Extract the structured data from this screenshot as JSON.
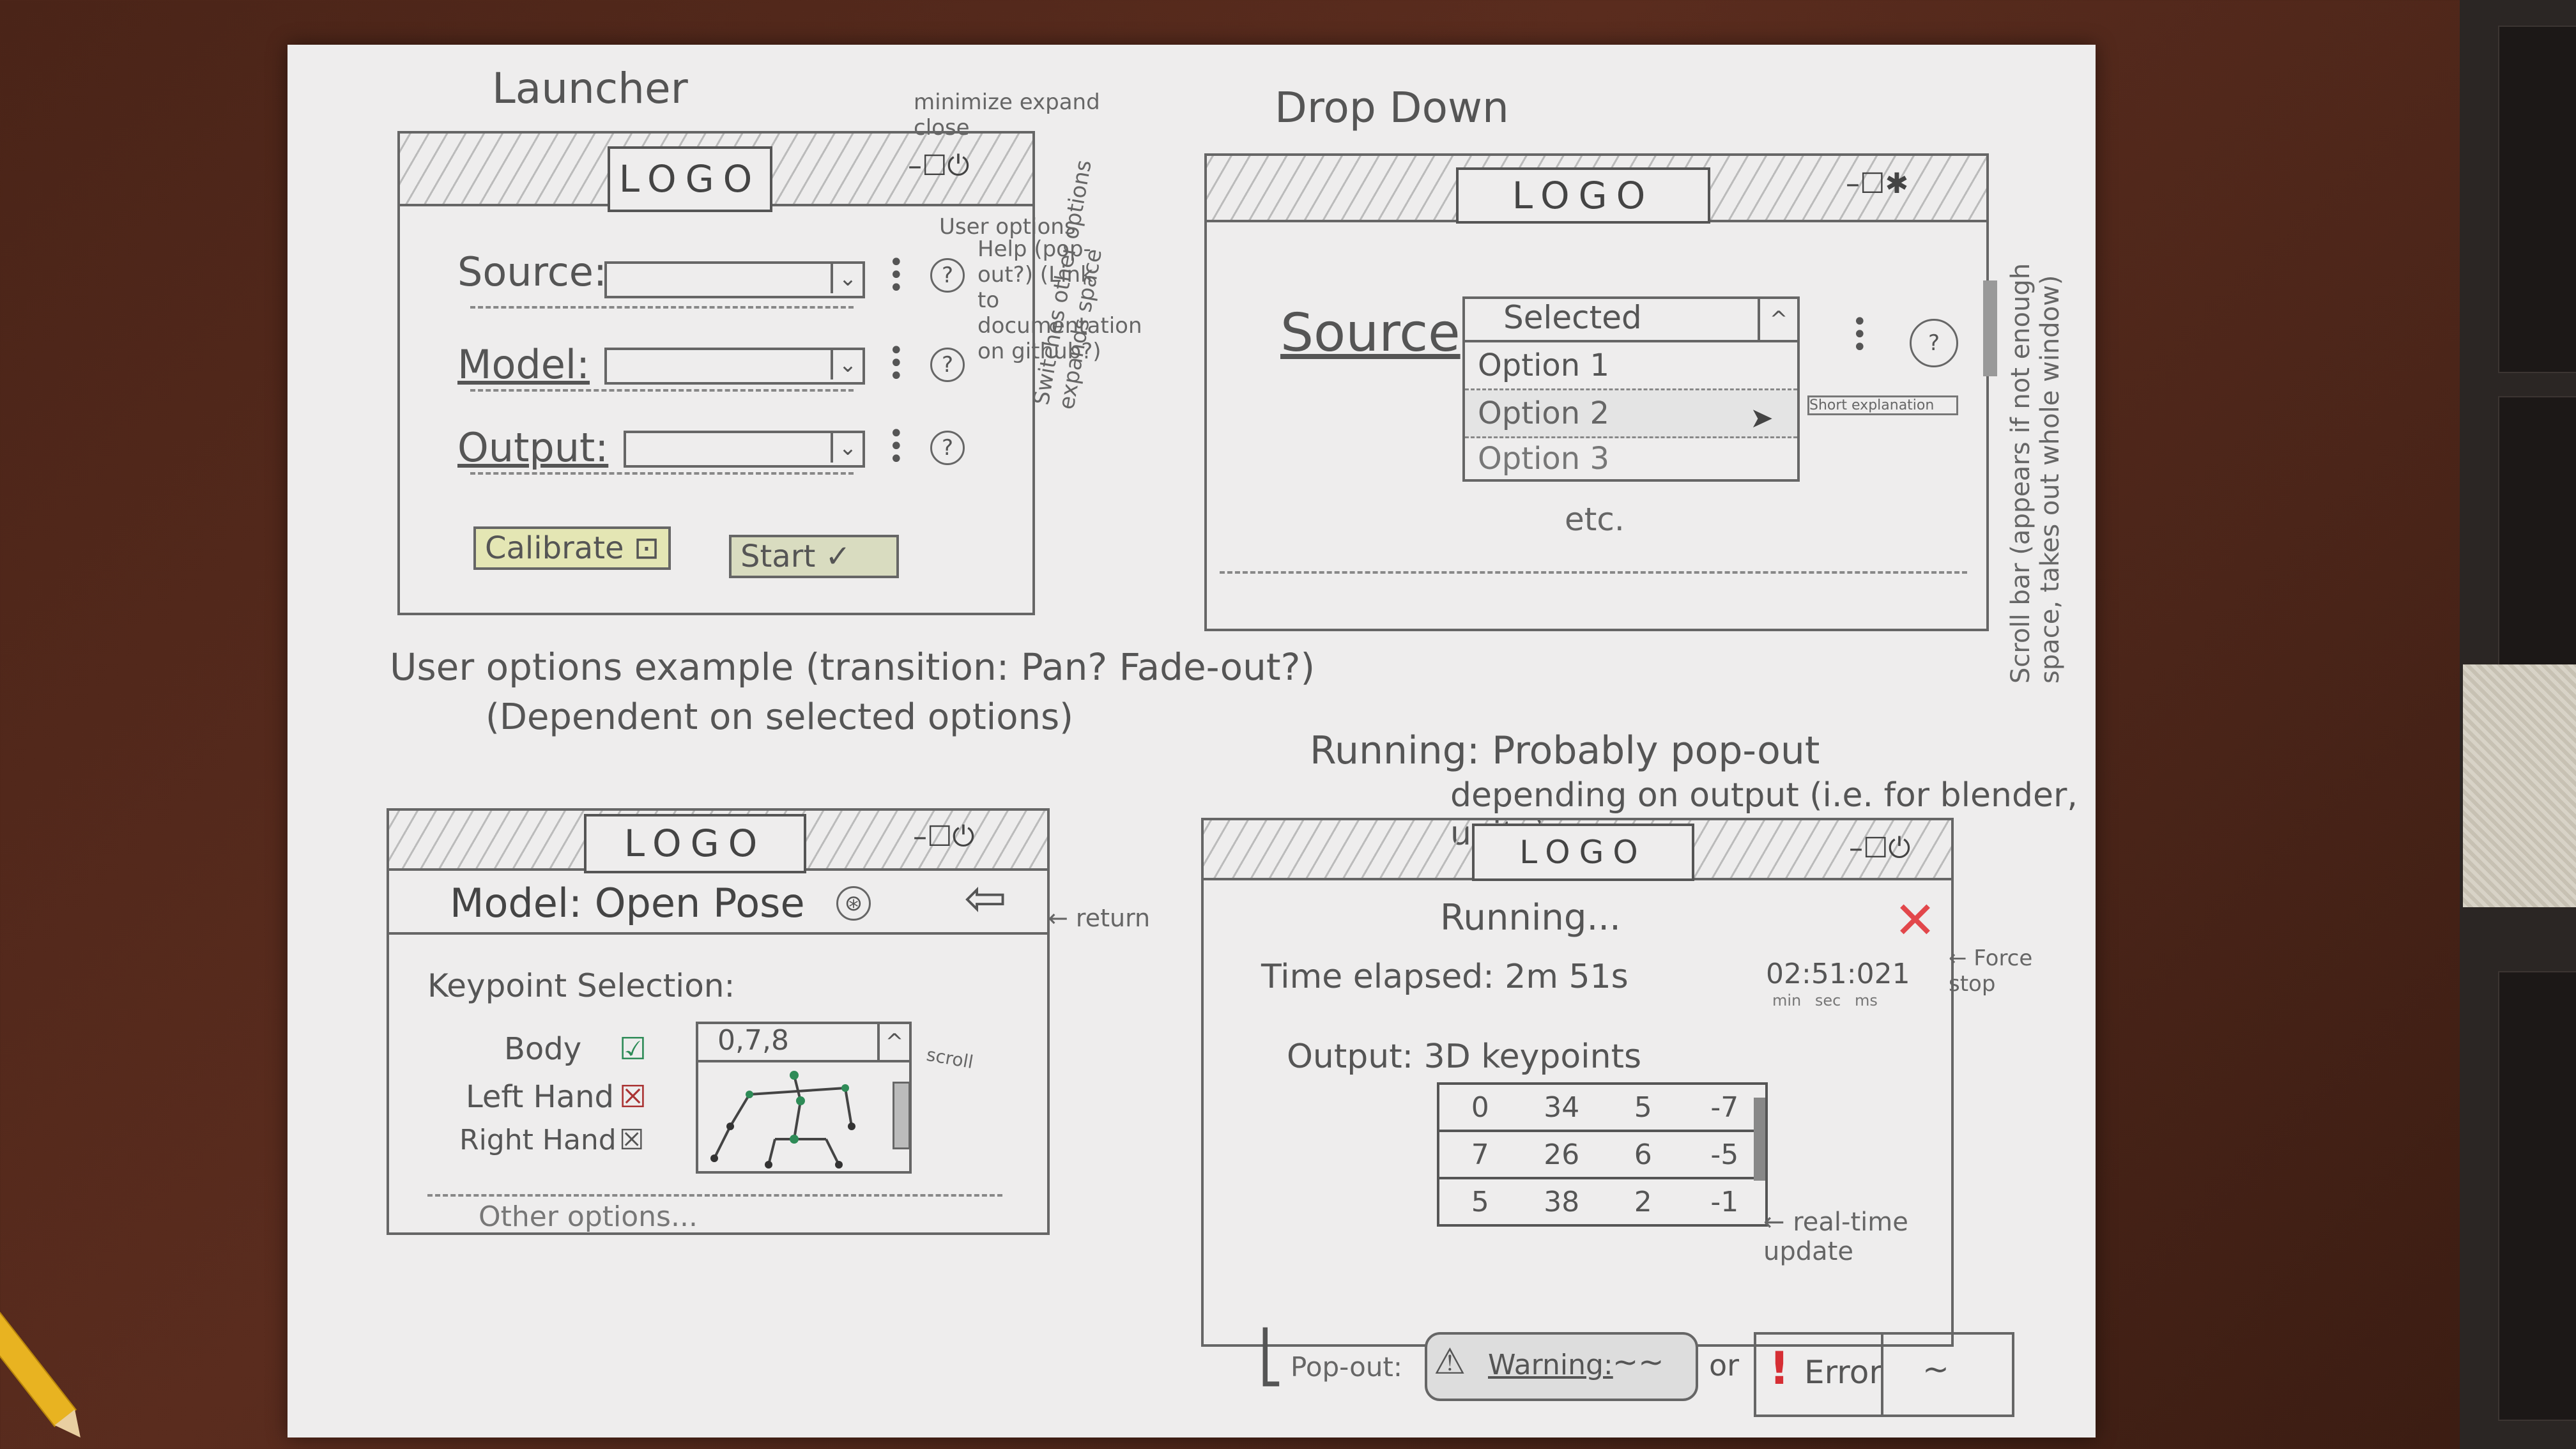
{
  "launcher": {
    "title": "Launcher",
    "logo": "LOGO",
    "controls": "–☐⏻",
    "rows": [
      {
        "label": "Source:"
      },
      {
        "label": "Model:"
      },
      {
        "label": "Output:"
      }
    ],
    "calibrate": "Calibrate",
    "start": "Start",
    "notes": {
      "window_controls": "minimize expand close",
      "user_options": "User options",
      "help": "Help (pop-out?) (Link to documentation on github?)",
      "switches": "Switches other options expands space"
    }
  },
  "dropdown": {
    "title": "Drop Down",
    "logo": "LOGO",
    "source_label": "Source",
    "selected": "Selected",
    "options": [
      "Option 1",
      "Option 2",
      "Option 3"
    ],
    "etc": "etc.",
    "tooltip": "Short explanation",
    "scroll_note": "Scroll bar (appears if not enough space, takes out whole window)"
  },
  "user_options": {
    "caption": "User options example (transition: Pan? Fade-out?)",
    "caption2": "(Dependent on selected options)",
    "logo": "LOGO",
    "model_label": "Model: Open Pose",
    "return_note": "← return",
    "keypoint_label": "Keypoint Selection:",
    "items": [
      {
        "label": "Body",
        "checked": true
      },
      {
        "label": "Left Hand",
        "checked": false
      },
      {
        "label": "Right Hand",
        "checked": false
      }
    ],
    "keypoint_value": "0,7,8",
    "scroll_note": "scroll",
    "other": "Other options..."
  },
  "running": {
    "caption": "Running: Probably pop-out",
    "caption2": "depending on output (i.e. for blender, unity)",
    "logo": "LOGO",
    "status": "Running...",
    "time_label": "Time elapsed: 2m 51s",
    "time_value": "02:51:021",
    "time_units": "min sec ms",
    "force_stop": "← Force stop",
    "output_label": "Output: 3D keypoints",
    "table": [
      [
        "0",
        "34",
        "5",
        "-7"
      ],
      [
        "7",
        "26",
        "6",
        "-5"
      ],
      [
        "5",
        "38",
        "2",
        "-1"
      ]
    ],
    "realtime_note": "← real-time update"
  },
  "popout": {
    "label": "Pop-out:",
    "warning": "Warning:",
    "warning_msg": "~~",
    "or": "or",
    "error": "Error",
    "error_msg": "~"
  },
  "colors": {
    "paper": "#eeeded",
    "ink": "#555555",
    "calibrate_fill": "#e4e6b4",
    "start_fill": "#d9dcc0",
    "stop_red": "#e2474b",
    "error_red": "#d62e34"
  }
}
